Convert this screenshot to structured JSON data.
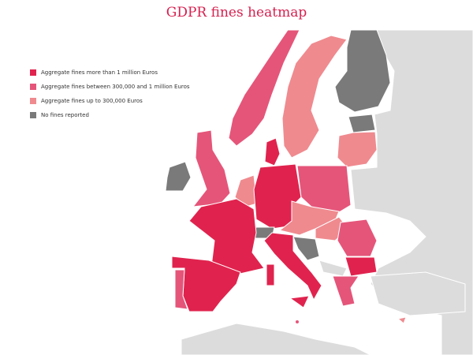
{
  "title": "GDPR fines heatmap",
  "legend": [
    {
      "label": "Aggregate fines more than 1 million Euros",
      "color": "#e0234e"
    },
    {
      "label": "Aggregate fines between 300,000 and 1 million Euros",
      "color": "#e5557a"
    },
    {
      "label": "Aggregate fines up to 300,000 Euros",
      "color": "#ef8a8f"
    },
    {
      "label": "No fines reported",
      "color": "#7a7a7a"
    }
  ]
}
